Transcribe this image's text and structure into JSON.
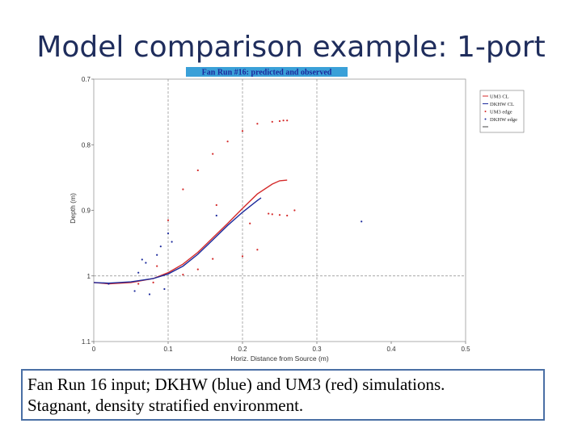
{
  "slide": {
    "title": "Model comparison example: 1-port",
    "caption_lines": [
      "Fan Run 16 input; DKHW (blue) and UM3 (red) simulations.",
      "Stagnant, density stratified environment."
    ]
  },
  "chart_data": {
    "type": "line",
    "title": "Fan Run #16: predicted and observed",
    "xlabel": "Horiz. Distance from Source (m)",
    "ylabel": "Depth (m)",
    "xlim": [
      0,
      0.5
    ],
    "ylim": [
      1.1,
      0.7
    ],
    "y_inverted": true,
    "x_ticks": [
      "0",
      "0.1",
      "0.2",
      "0.3",
      "0.4",
      "0.5"
    ],
    "y_ticks": [
      "0.7",
      "0.8",
      "0.9",
      "1",
      "1.1"
    ],
    "grid_lines": {
      "x": [
        0.1,
        0.2,
        0.3
      ],
      "y": [
        1.0
      ]
    },
    "legend_position": "top-right",
    "legend": [
      "UM3 CL",
      "DKHW CL",
      "UM3 edge",
      "DKHW edge",
      ""
    ],
    "colors": {
      "um3": "#d42a2a",
      "dkhw": "#1c2a9c",
      "title_bg": "#3aa0d8",
      "title_text": "#1c2a9c"
    },
    "series": [
      {
        "name": "UM3 CL",
        "style": "line",
        "color": "#d42a2a",
        "x": [
          0,
          0.02,
          0.05,
          0.08,
          0.1,
          0.12,
          0.14,
          0.16,
          0.18,
          0.2,
          0.22,
          0.24,
          0.25,
          0.26
        ],
        "y": [
          1.01,
          1.012,
          1.01,
          1.004,
          0.995,
          0.982,
          0.964,
          0.942,
          0.92,
          0.897,
          0.875,
          0.86,
          0.855,
          0.854
        ]
      },
      {
        "name": "DKHW CL",
        "style": "line",
        "color": "#1c2a9c",
        "x": [
          0,
          0.02,
          0.05,
          0.08,
          0.1,
          0.12,
          0.14,
          0.16,
          0.18,
          0.2,
          0.22,
          0.225
        ],
        "y": [
          1.01,
          1.011,
          1.009,
          1.004,
          0.997,
          0.985,
          0.967,
          0.945,
          0.923,
          0.903,
          0.885,
          0.881
        ]
      },
      {
        "name": "UM3 edge",
        "style": "dots",
        "color": "#d42a2a",
        "x": [
          0.1,
          0.12,
          0.14,
          0.16,
          0.18,
          0.2,
          0.22,
          0.24,
          0.25,
          0.255,
          0.26,
          0.235,
          0.24,
          0.25,
          0.26,
          0.27,
          0.06,
          0.08,
          0.12,
          0.14,
          0.16,
          0.2,
          0.22,
          0.165,
          0.21,
          0.085
        ],
        "y": [
          0.915,
          0.868,
          0.839,
          0.814,
          0.795,
          0.779,
          0.768,
          0.765,
          0.764,
          0.763,
          0.763,
          0.905,
          0.906,
          0.907,
          0.908,
          0.9,
          1.012,
          1.01,
          0.998,
          0.99,
          0.974,
          0.97,
          0.96,
          0.892,
          0.92,
          0.985
        ]
      },
      {
        "name": "DKHW edge",
        "style": "dots",
        "color": "#1c2a9c",
        "x": [
          0.055,
          0.065,
          0.075,
          0.085,
          0.095,
          0.105,
          0.06,
          0.09,
          0.165,
          0.1,
          0.36,
          0.07,
          0.02
        ],
        "y": [
          1.023,
          0.975,
          1.028,
          0.968,
          1.02,
          0.948,
          0.995,
          0.955,
          0.908,
          0.935,
          0.917,
          0.98,
          1.012
        ]
      }
    ]
  }
}
